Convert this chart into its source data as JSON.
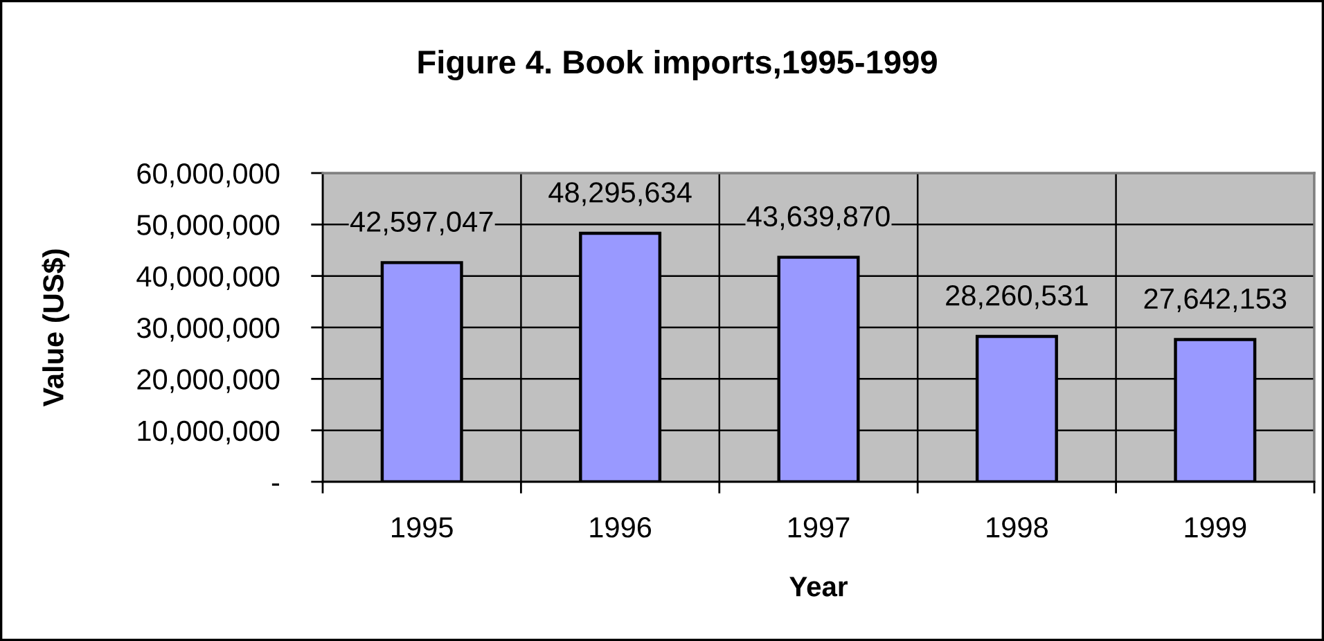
{
  "chart_data": {
    "type": "bar",
    "title": "Figure 4. Book imports,1995-1999",
    "xlabel": "Year",
    "ylabel": "Value (US$)",
    "categories": [
      "1995",
      "1996",
      "1997",
      "1998",
      "1999"
    ],
    "values": [
      42597047,
      48295634,
      43639870,
      28260531,
      27642153
    ],
    "value_labels": [
      "42,597,047",
      "48,295,634",
      "43,639,870",
      "28,260,531",
      "27,642,153"
    ],
    "color": "#9999ff",
    "ylim": [
      0,
      60000000
    ],
    "yticks": [
      {
        "value": 0,
        "label": "-"
      },
      {
        "value": 10000000,
        "label": "10,000,000"
      },
      {
        "value": 20000000,
        "label": "20,000,000"
      },
      {
        "value": 30000000,
        "label": "30,000,000"
      },
      {
        "value": 40000000,
        "label": "40,000,000"
      },
      {
        "value": 50000000,
        "label": "50,000,000"
      },
      {
        "value": 60000000,
        "label": "60,000,000"
      }
    ],
    "grid": true
  }
}
